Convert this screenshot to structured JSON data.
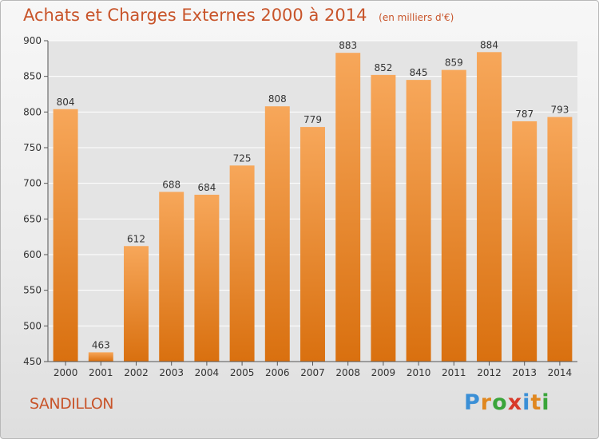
{
  "title": "Achats et Charges Externes 2000 à 2014",
  "unit": "(en milliers d'€)",
  "place": "SANDILLON",
  "logo": {
    "letters": [
      "P",
      "r",
      "o",
      "x",
      "i",
      "t",
      "i"
    ],
    "colors": [
      "#3a8fd6",
      "#e0871f",
      "#3aa53a",
      "#d83a2a",
      "#3a8fd6",
      "#e0871f",
      "#3aa53a"
    ]
  },
  "chart_data": {
    "type": "bar",
    "categories": [
      "2000",
      "2001",
      "2002",
      "2003",
      "2004",
      "2005",
      "2006",
      "2007",
      "2008",
      "2009",
      "2010",
      "2011",
      "2012",
      "2013",
      "2014"
    ],
    "values": [
      804,
      463,
      612,
      688,
      684,
      725,
      808,
      779,
      883,
      852,
      845,
      859,
      884,
      787,
      793
    ],
    "ylim": [
      450,
      900
    ],
    "yticks": [
      450,
      500,
      550,
      600,
      650,
      700,
      750,
      800,
      850,
      900
    ],
    "grid": true,
    "bar_color": "#f08a2e"
  }
}
